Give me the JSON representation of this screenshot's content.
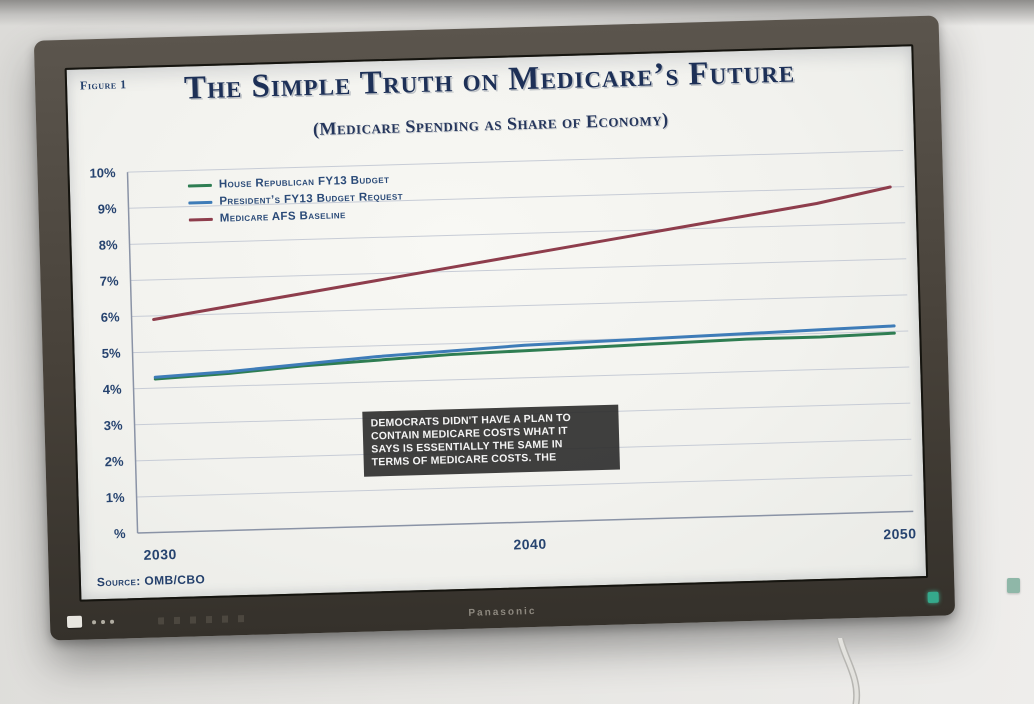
{
  "tv": {
    "brand": "Panasonic"
  },
  "screen": {
    "figure_label": "Figure 1",
    "title": "The Simple Truth on Medicare’s Future",
    "subtitle": "(Medicare Spending as Share of Economy)",
    "source": "Source: OMB/CBO",
    "caption": {
      "lines": [
        "DEMOCRATS DIDN'T HAVE A PLAN TO",
        "CONTAIN MEDICARE COSTS WHAT IT",
        "SAYS IS ESSENTIALLY THE SAME IN",
        "TERMS OF MEDICARE COSTS. THE"
      ]
    }
  },
  "chart_data": {
    "type": "line",
    "title": "The Simple Truth on Medicare’s Future",
    "subtitle": "(Medicare Spending as Share of Economy)",
    "source": "Source: OMB/CBO",
    "xlabel": "",
    "ylabel": "Medicare spending as share of economy (%)",
    "x": [
      2030,
      2032,
      2034,
      2036,
      2038,
      2040,
      2042,
      2044,
      2046,
      2048,
      2050
    ],
    "xticks": [
      2030,
      2040,
      2050
    ],
    "ylim": [
      0,
      10
    ],
    "ytick_labels": [
      "%",
      "1%",
      "2%",
      "3%",
      "4%",
      "5%",
      "6%",
      "7%",
      "8%",
      "9%",
      "10%"
    ],
    "grid": true,
    "legend_position": "top-left",
    "series": [
      {
        "name": "House Republican FY13 Budget",
        "color": "#2e7d52",
        "values": [
          4.25,
          4.35,
          4.5,
          4.6,
          4.7,
          4.75,
          4.8,
          4.85,
          4.9,
          4.9,
          4.95
        ]
      },
      {
        "name": "President’s FY13 Budget Request",
        "color": "#3e7cb8",
        "values": [
          4.3,
          4.4,
          4.55,
          4.7,
          4.8,
          4.9,
          4.95,
          5.0,
          5.05,
          5.1,
          5.15
        ]
      },
      {
        "name": "Medicare AFS Baseline",
        "color": "#8e3d4c",
        "values": [
          5.9,
          6.2,
          6.5,
          6.8,
          7.1,
          7.4,
          7.7,
          8.0,
          8.3,
          8.6,
          9.0
        ]
      }
    ]
  }
}
